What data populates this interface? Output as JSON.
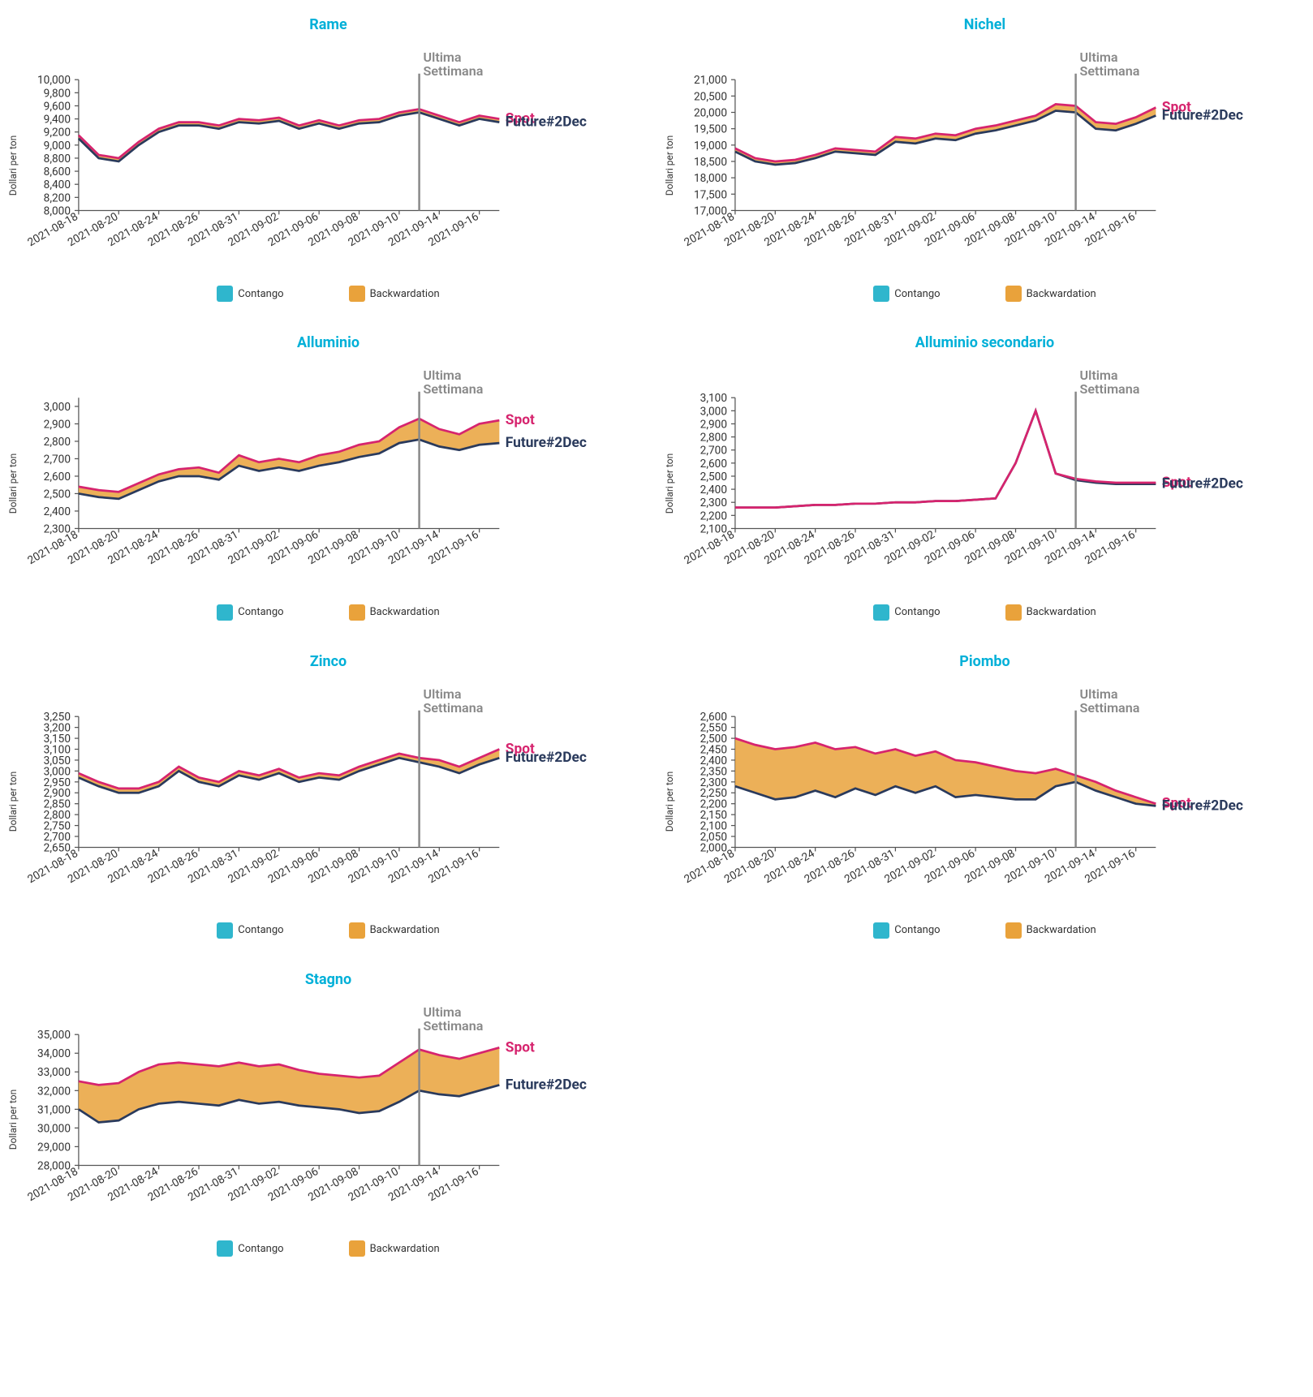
{
  "global": {
    "ylabel": "Dollari per ton",
    "annotation": "Ultima\nSettimana",
    "legend": {
      "contango": "Contango",
      "backwardation": "Backwardation"
    },
    "series_labels": {
      "spot": "Spot",
      "future": "Future#2Dec"
    },
    "colors": {
      "title": "#00b0d8",
      "spot_line": "#d6246e",
      "future_line": "#2a3a5c",
      "contango_fill": "#2fb6cd",
      "backwardation_fill": "#e9a23b",
      "axis": "#555555",
      "grid": "#e0e0e0",
      "marker_line": "#888888",
      "annotation_text": "#888888",
      "background": "#ffffff",
      "tick_text": "#333333"
    },
    "font": {
      "title_size": 18,
      "label_size": 12,
      "tick_size": 11,
      "annotation_size": 13,
      "series_label_size": 14
    },
    "line_width": 2.2,
    "marker_index": 17,
    "dates": [
      "2021-08-18",
      "2021-08-19",
      "2021-08-20",
      "2021-08-23",
      "2021-08-24",
      "2021-08-25",
      "2021-08-26",
      "2021-08-27",
      "2021-08-31",
      "2021-09-01",
      "2021-09-02",
      "2021-09-03",
      "2021-09-06",
      "2021-09-07",
      "2021-09-08",
      "2021-09-09",
      "2021-09-10",
      "2021-09-13",
      "2021-09-14",
      "2021-09-15",
      "2021-09-16",
      "2021-09-17"
    ],
    "xticks": [
      "2021-08-18",
      "2021-08-20",
      "2021-08-24",
      "2021-08-26",
      "2021-08-31",
      "2021-09-02",
      "2021-09-06",
      "2021-09-08",
      "2021-09-10",
      "2021-09-14",
      "2021-09-16"
    ]
  },
  "charts": [
    {
      "id": "rame",
      "title": "Rame",
      "ylim": [
        8000,
        10000
      ],
      "ytick_step": 200,
      "spot": [
        9150,
        8850,
        8800,
        9050,
        9250,
        9350,
        9350,
        9300,
        9400,
        9380,
        9420,
        9300,
        9380,
        9300,
        9380,
        9400,
        9500,
        9550,
        9450,
        9350,
        9450,
        9400
      ],
      "future": [
        9100,
        8800,
        8750,
        9000,
        9200,
        9300,
        9300,
        9250,
        9350,
        9330,
        9370,
        9250,
        9330,
        9250,
        9330,
        9350,
        9450,
        9500,
        9400,
        9300,
        9400,
        9350
      ]
    },
    {
      "id": "nichel",
      "title": "Nichel",
      "ylim": [
        17000,
        21000
      ],
      "ytick_step": 500,
      "spot": [
        18900,
        18600,
        18500,
        18550,
        18700,
        18900,
        18850,
        18800,
        19250,
        19200,
        19350,
        19300,
        19500,
        19600,
        19750,
        19900,
        20250,
        20200,
        19700,
        19650,
        19850,
        20150
      ],
      "future": [
        18800,
        18500,
        18400,
        18450,
        18600,
        18800,
        18750,
        18700,
        19100,
        19050,
        19200,
        19150,
        19350,
        19450,
        19600,
        19750,
        20050,
        20000,
        19500,
        19450,
        19650,
        19900
      ]
    },
    {
      "id": "alluminio",
      "title": "Alluminio",
      "ylim": [
        2300,
        3050
      ],
      "ytick_step": 100,
      "spot": [
        2540,
        2520,
        2510,
        2560,
        2610,
        2640,
        2650,
        2620,
        2720,
        2680,
        2700,
        2680,
        2720,
        2740,
        2780,
        2800,
        2880,
        2930,
        2870,
        2840,
        2900,
        2920
      ],
      "future": [
        2500,
        2480,
        2470,
        2520,
        2570,
        2600,
        2600,
        2580,
        2660,
        2630,
        2650,
        2630,
        2660,
        2680,
        2710,
        2730,
        2790,
        2810,
        2770,
        2750,
        2780,
        2790
      ]
    },
    {
      "id": "alluminio-sec",
      "title": "Alluminio secondario",
      "ylim": [
        2100,
        3100
      ],
      "ytick_step": 100,
      "spot": [
        2260,
        2260,
        2260,
        2270,
        2280,
        2280,
        2290,
        2290,
        2300,
        2300,
        2310,
        2310,
        2320,
        2330,
        2600,
        3000,
        2520,
        2480,
        2460,
        2450,
        2450,
        2450
      ],
      "future": [
        2260,
        2260,
        2260,
        2270,
        2280,
        2280,
        2290,
        2290,
        2300,
        2300,
        2310,
        2310,
        2320,
        2330,
        2600,
        3000,
        2520,
        2470,
        2450,
        2440,
        2440,
        2440
      ]
    },
    {
      "id": "zinco",
      "title": "Zinco",
      "ylim": [
        2650,
        3250
      ],
      "ytick_step": 50,
      "spot": [
        2990,
        2950,
        2920,
        2920,
        2950,
        3020,
        2970,
        2950,
        3000,
        2980,
        3010,
        2970,
        2990,
        2980,
        3020,
        3050,
        3080,
        3060,
        3050,
        3020,
        3060,
        3100
      ],
      "future": [
        2970,
        2930,
        2900,
        2900,
        2930,
        3000,
        2950,
        2930,
        2980,
        2960,
        2990,
        2950,
        2970,
        2960,
        3000,
        3030,
        3060,
        3040,
        3020,
        2990,
        3030,
        3060
      ]
    },
    {
      "id": "piombo",
      "title": "Piombo",
      "ylim": [
        2000,
        2600
      ],
      "ytick_step": 50,
      "spot": [
        2500,
        2470,
        2450,
        2460,
        2480,
        2450,
        2460,
        2430,
        2450,
        2420,
        2440,
        2400,
        2390,
        2370,
        2350,
        2340,
        2360,
        2330,
        2300,
        2260,
        2230,
        2200
      ],
      "future": [
        2280,
        2250,
        2220,
        2230,
        2260,
        2230,
        2270,
        2240,
        2280,
        2250,
        2280,
        2230,
        2240,
        2230,
        2220,
        2220,
        2280,
        2300,
        2260,
        2230,
        2200,
        2190
      ]
    },
    {
      "id": "stagno",
      "title": "Stagno",
      "ylim": [
        28000,
        35000
      ],
      "ytick_step": 1000,
      "spot": [
        32500,
        32300,
        32400,
        33000,
        33400,
        33500,
        33400,
        33300,
        33500,
        33300,
        33400,
        33100,
        32900,
        32800,
        32700,
        32800,
        33500,
        34200,
        33900,
        33700,
        34000,
        34300
      ],
      "future": [
        31000,
        30300,
        30400,
        31000,
        31300,
        31400,
        31300,
        31200,
        31500,
        31300,
        31400,
        31200,
        31100,
        31000,
        30800,
        30900,
        31400,
        32000,
        31800,
        31700,
        32000,
        32300
      ]
    }
  ]
}
